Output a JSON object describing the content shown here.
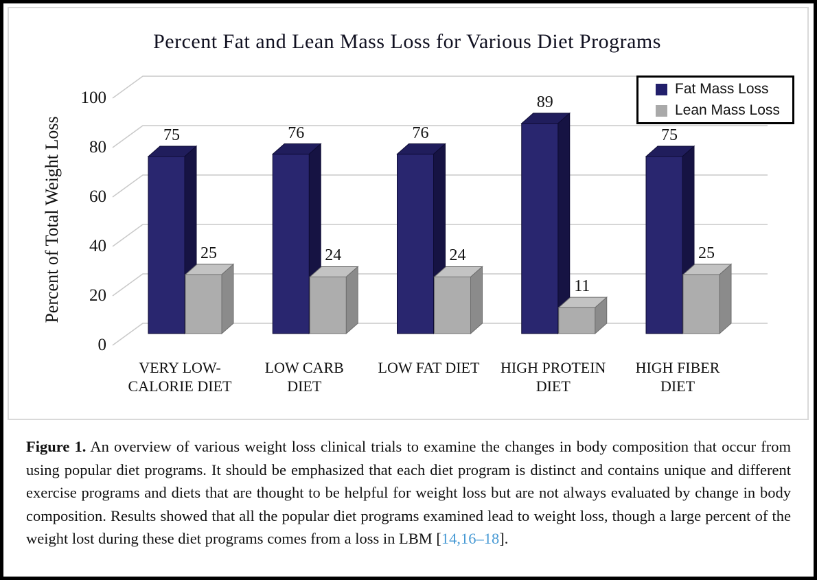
{
  "chart_data": {
    "type": "bar",
    "subtype": "3d-column",
    "title": "Percent Fat and Lean Mass Loss for Various Diet Programs",
    "xlabel": "",
    "ylabel": "Percent of Total Weight Loss",
    "ylim": [
      0,
      100
    ],
    "yticks": [
      0,
      20,
      40,
      60,
      80,
      100
    ],
    "grid": true,
    "legend_position": "top-right",
    "categories": [
      [
        "VERY LOW-",
        "CALORIE DIET"
      ],
      [
        "LOW CARB",
        "DIET"
      ],
      [
        "LOW FAT DIET"
      ],
      [
        "HIGH PROTEIN",
        "DIET"
      ],
      [
        "HIGH FIBER",
        "DIET"
      ]
    ],
    "series": [
      {
        "name": "Fat Mass Loss",
        "color": "#29266F",
        "values": [
          75,
          76,
          76,
          89,
          75
        ]
      },
      {
        "name": "Lean Mass Loss",
        "color": "#ADADAD",
        "values": [
          25,
          24,
          24,
          11,
          25
        ]
      }
    ]
  },
  "caption": {
    "label": "Figure 1.",
    "text": " An overview of various weight loss clinical trials to examine the changes in body composition that occur from using popular diet programs.  It should be emphasized that each diet program is distinct and contains unique and different exercise programs and diets that are thought to be helpful for weight loss but are not always evaluated by change in body composition. Results showed that all the popular diet programs examined lead to weight loss, though a large percent of the weight lost during these diet programs comes from a loss in LBM ",
    "bracket_open": "[",
    "citation": "14,16–18",
    "bracket_close": "]."
  },
  "colors": {
    "fat_front": "#29266F",
    "fat_top": "#201D5C",
    "fat_side": "#161343",
    "fat_edge": "#0D0B33",
    "lean_front": "#ADADAD",
    "lean_top": "#C3C3C3",
    "lean_side": "#8B8B8B",
    "lean_edge": "#6E6E6E",
    "gridline": "#C9C9C9",
    "citation_link": "#4699D4",
    "legend_fat": "#221F6B",
    "legend_lean": "#A9A9A9",
    "frame_border": "#000000",
    "chart_box_border": "#D9D9D9"
  }
}
